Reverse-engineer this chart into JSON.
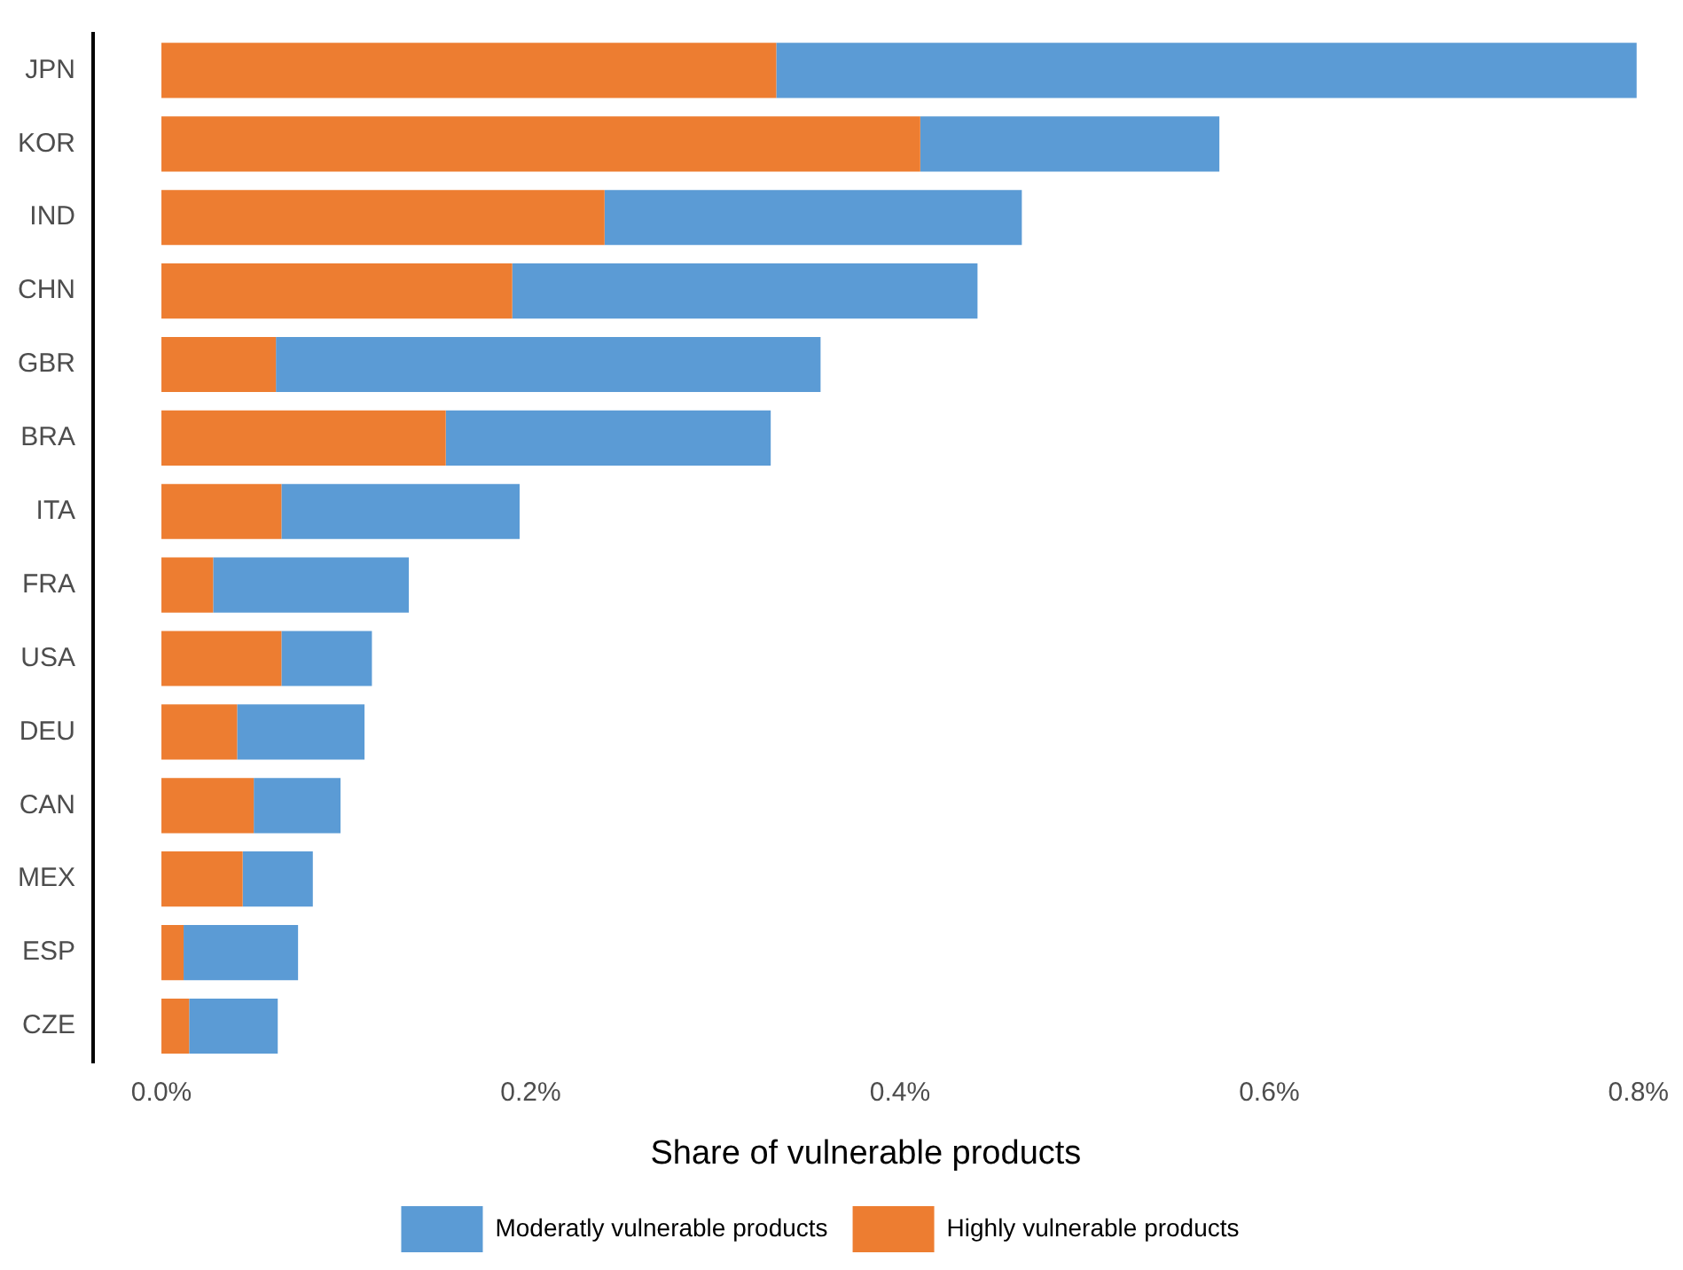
{
  "chart_data": {
    "type": "bar",
    "orientation": "horizontal",
    "stacked": true,
    "xlabel": "Share of vulnerable products",
    "categories": [
      "JPN",
      "KOR",
      "IND",
      "CHN",
      "GBR",
      "BRA",
      "ITA",
      "FRA",
      "USA",
      "DEU",
      "CAN",
      "MEX",
      "ESP",
      "CZE"
    ],
    "series": [
      {
        "name": "Highly vulnerable products",
        "color": "#ed7d31",
        "values": [
          0.333,
          0.411,
          0.24,
          0.19,
          0.062,
          0.154,
          0.065,
          0.028,
          0.065,
          0.041,
          0.05,
          0.044,
          0.012,
          0.015
        ]
      },
      {
        "name": "Moderatly vulnerable products",
        "color": "#5b9bd5",
        "values": [
          0.466,
          0.162,
          0.226,
          0.252,
          0.295,
          0.176,
          0.129,
          0.106,
          0.049,
          0.069,
          0.047,
          0.038,
          0.062,
          0.048
        ]
      }
    ],
    "xlim": [
      -0.037,
      0.8
    ],
    "xticks": [
      {
        "value": 0,
        "label": "0.0%"
      },
      {
        "value": 0.2,
        "label": "0.2%"
      },
      {
        "value": 0.4,
        "label": "0.4%"
      },
      {
        "value": 0.6,
        "label": "0.6%"
      },
      {
        "value": 0.8,
        "label": "0.8%"
      }
    ],
    "grid": false,
    "legend": "bottom"
  }
}
